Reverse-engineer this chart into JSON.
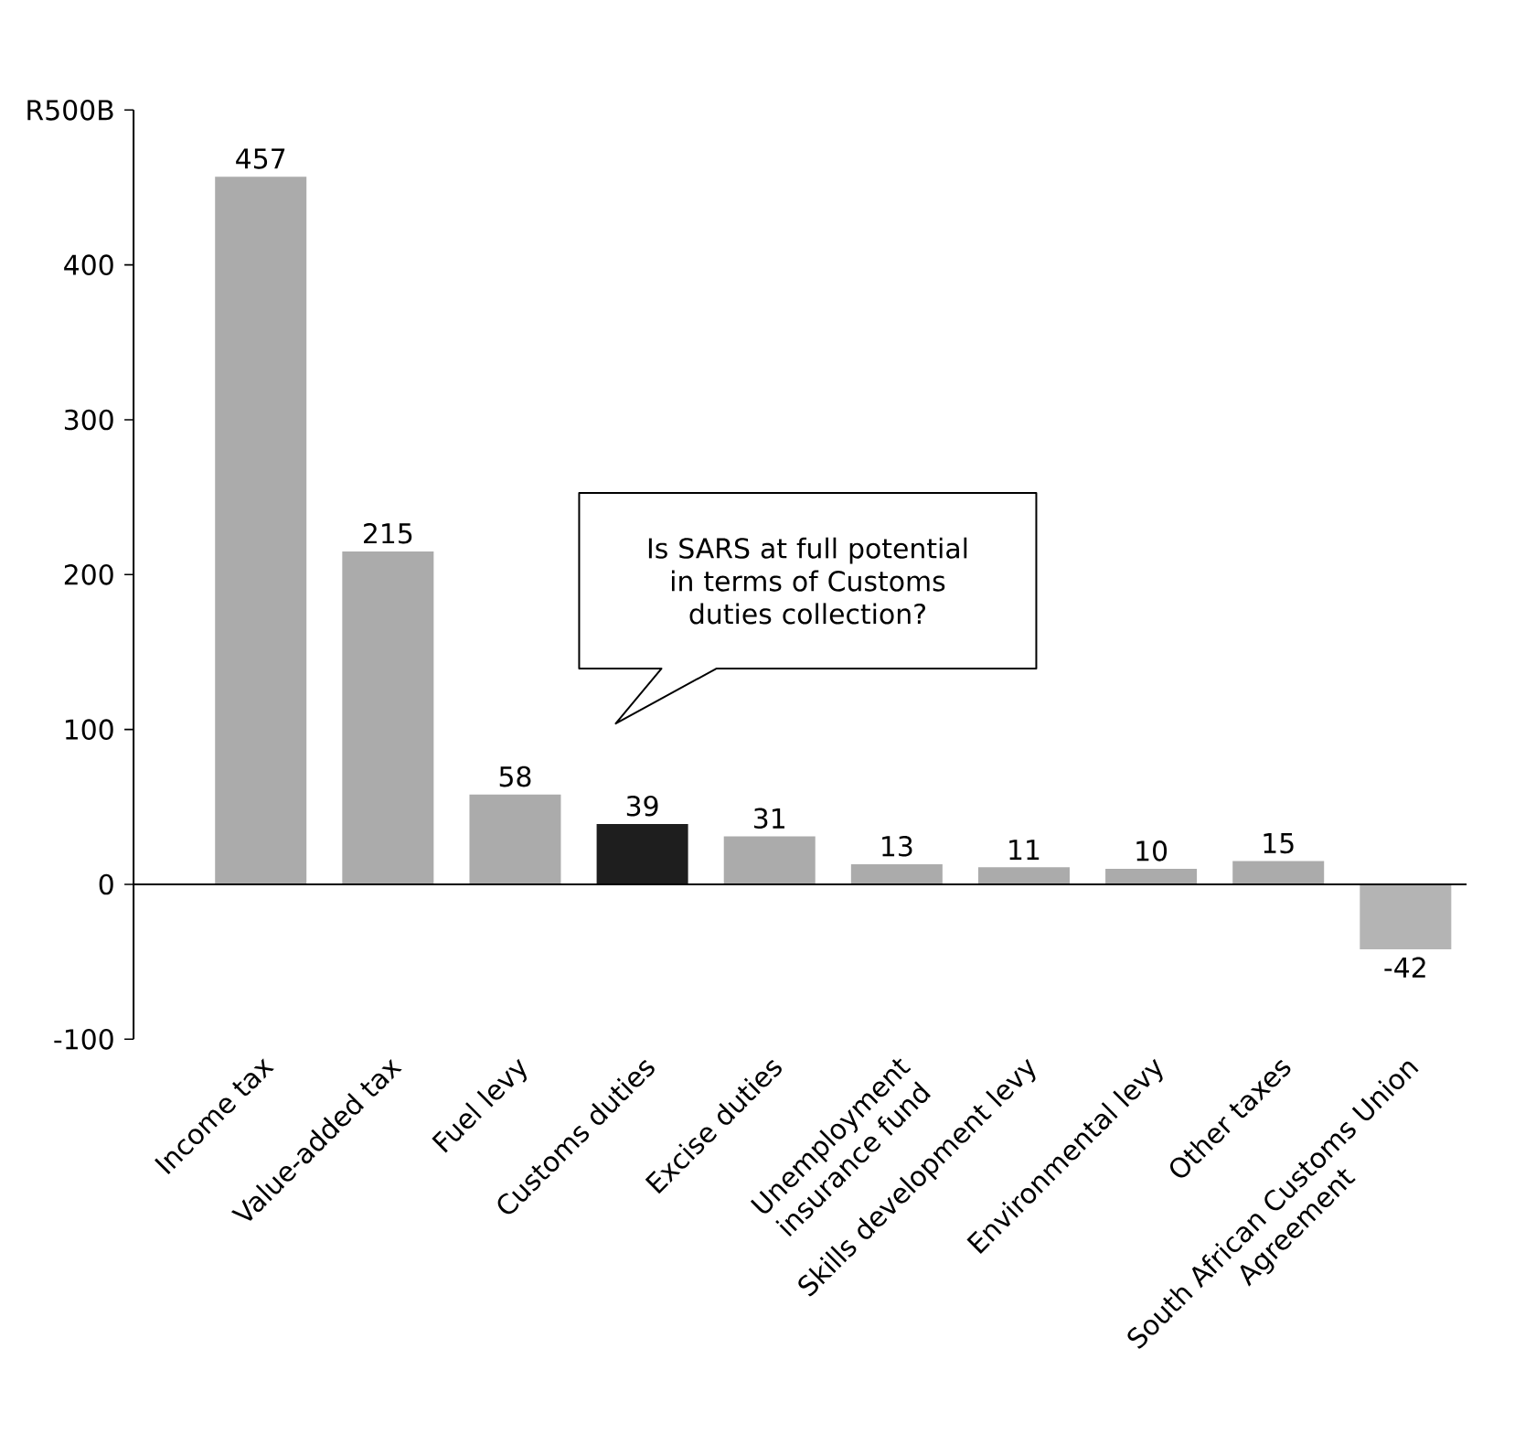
{
  "chart_data": {
    "type": "bar",
    "categories": [
      "Income tax",
      "Value-added tax",
      "Fuel levy",
      "Customs duties",
      "Excise duties",
      "Unemployment insurance fund",
      "Skills development levy",
      "Environmental levy",
      "Other taxes",
      "South African Customs Union Agreement"
    ],
    "values": [
      457,
      215,
      58,
      39,
      31,
      13,
      11,
      10,
      15,
      -42
    ],
    "colors": [
      "#ababab",
      "#ababab",
      "#ababab",
      "#1e1e1e",
      "#ababab",
      "#ababab",
      "#ababab",
      "#ababab",
      "#ababab",
      "#b4b4b4"
    ],
    "ylim": [
      -100,
      500
    ],
    "yticks": [
      -100,
      0,
      100,
      200,
      300,
      400,
      {
        "value": 500,
        "label": "R500B"
      }
    ],
    "data_labels": true,
    "annotations": [
      "Is SARS at full potential in terms of Customs duties collection?"
    ]
  }
}
